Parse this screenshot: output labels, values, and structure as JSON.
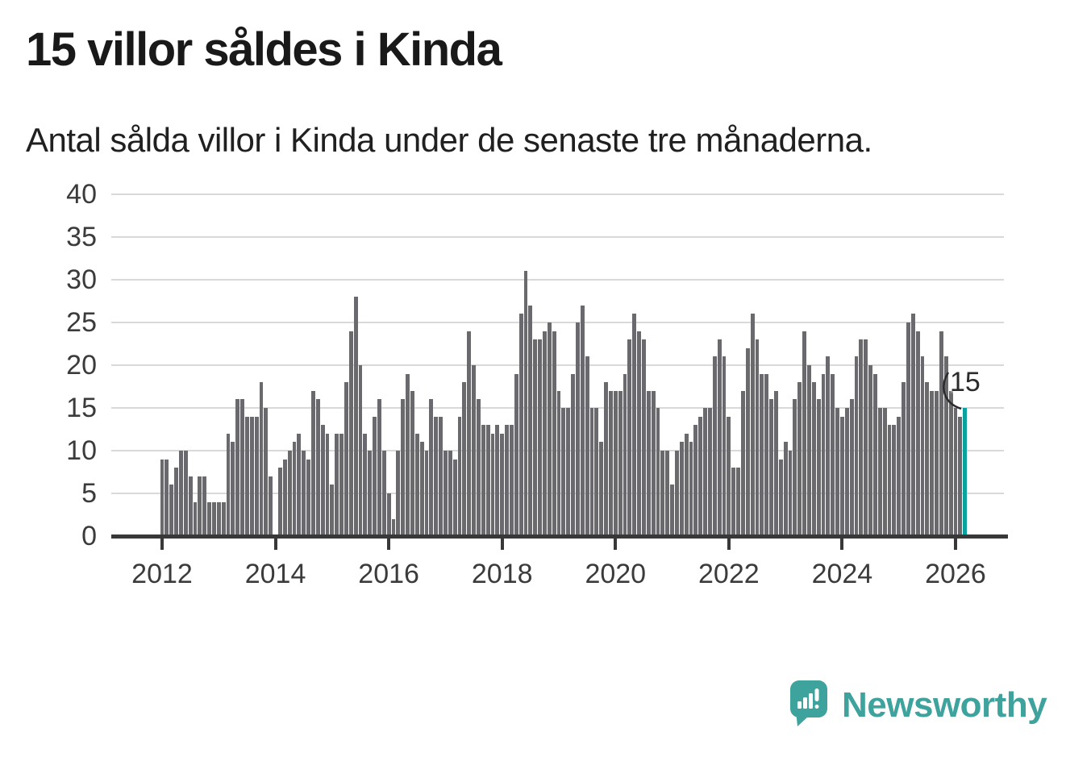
{
  "header": {
    "title": "15 villor såldes i Kinda",
    "subtitle": "Antal sålda villor i Kinda under de senaste tre månaderna."
  },
  "annotation": {
    "last_value_label": "15"
  },
  "footer": {
    "brand": "Newsworthy"
  },
  "colors": {
    "bar": "#6a6a6e",
    "highlight": "#0aa29e",
    "grid": "#d9d9d9",
    "axis": "#383838",
    "brand": "#3da39c",
    "text": "#191919"
  },
  "chart_data": {
    "type": "bar",
    "title": "15 villor såldes i Kinda",
    "subtitle": "Antal sålda villor i Kinda under de senaste tre månaderna.",
    "x_frequency": "monthly",
    "x_start": "2012-01",
    "x_end": "2026-03",
    "x_tick_labels": [
      "2012",
      "2014",
      "2016",
      "2018",
      "2020",
      "2022",
      "2024",
      "2026"
    ],
    "y_ticks": [
      0,
      5,
      10,
      15,
      20,
      25,
      30,
      35,
      40
    ],
    "ylim": [
      0,
      40
    ],
    "grid": true,
    "highlight_last_bar": true,
    "last_bar_color": "#0aa29e",
    "series": [
      {
        "name": "Antal sålda villor, rullande tre månader",
        "values": [
          9,
          9,
          6,
          8,
          10,
          10,
          7,
          4,
          7,
          7,
          4,
          4,
          4,
          4,
          12,
          11,
          16,
          16,
          14,
          14,
          14,
          18,
          15,
          7,
          0,
          8,
          9,
          10,
          11,
          12,
          10,
          9,
          17,
          16,
          13,
          12,
          6,
          12,
          12,
          18,
          24,
          28,
          20,
          12,
          10,
          14,
          16,
          10,
          5,
          2,
          10,
          16,
          19,
          17,
          12,
          11,
          10,
          16,
          14,
          14,
          10,
          10,
          9,
          14,
          18,
          24,
          20,
          16,
          13,
          13,
          12,
          13,
          12,
          13,
          13,
          19,
          26,
          31,
          27,
          23,
          23,
          24,
          25,
          24,
          17,
          15,
          15,
          19,
          25,
          27,
          21,
          15,
          15,
          11,
          18,
          17,
          17,
          17,
          19,
          23,
          26,
          24,
          23,
          17,
          17,
          15,
          10,
          10,
          6,
          10,
          11,
          12,
          11,
          13,
          14,
          15,
          15,
          21,
          23,
          21,
          14,
          8,
          8,
          17,
          22,
          26,
          23,
          19,
          19,
          16,
          17,
          9,
          11,
          10,
          16,
          18,
          24,
          20,
          18,
          16,
          19,
          21,
          19,
          15,
          14,
          15,
          16,
          21,
          23,
          23,
          20,
          19,
          15,
          15,
          13,
          13,
          14,
          18,
          25,
          26,
          24,
          21,
          18,
          17,
          17,
          24,
          21,
          17,
          15,
          14,
          15
        ]
      }
    ]
  }
}
